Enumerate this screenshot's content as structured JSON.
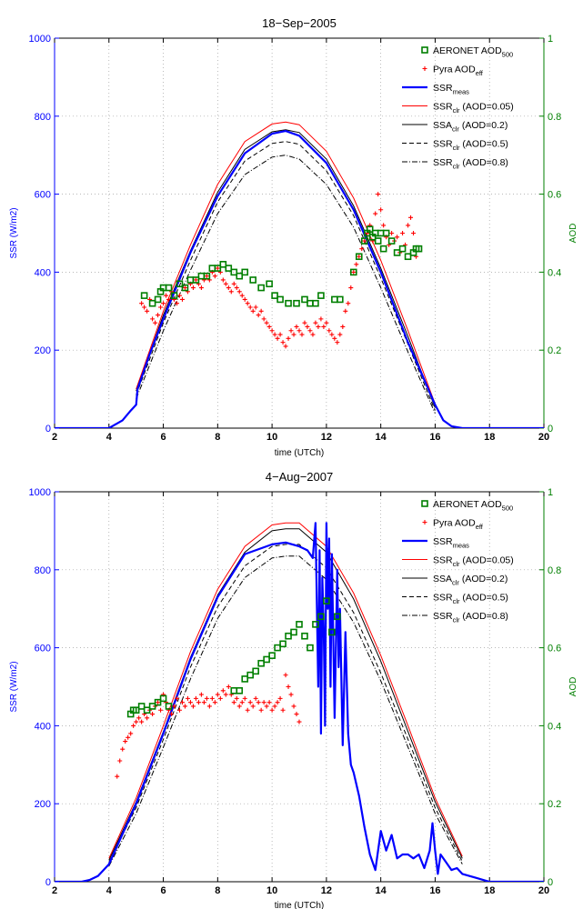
{
  "chart_data": [
    {
      "type": "line",
      "title": "18−Sep−2005",
      "xlabel": "time (UTCh)",
      "ylabel": "SSR (W/m2)",
      "y2label": "AOD",
      "xlim": [
        2,
        20
      ],
      "ylim": [
        0,
        1000
      ],
      "y2lim": [
        0,
        1
      ],
      "xticks": [
        "2",
        "4",
        "6",
        "8",
        "10",
        "12",
        "14",
        "16",
        "18",
        "20"
      ],
      "yticks": [
        "0",
        "200",
        "400",
        "600",
        "800",
        "1000"
      ],
      "y2ticks": [
        "0",
        "0.2",
        "0.4",
        "0.6",
        "0.8",
        "1"
      ],
      "grid": true,
      "legend_position": "top-right",
      "legend": [
        {
          "key": "aeronet",
          "label": "AERONET AOD",
          "sub": "500"
        },
        {
          "key": "pyra",
          "label": "Pyra AOD",
          "sub": "eff"
        },
        {
          "key": "meas",
          "label": "SSR",
          "sub": "meas"
        },
        {
          "key": "c005",
          "label": "SSR",
          "sub": "clr",
          "suffix": " (AOD=0.05)"
        },
        {
          "key": "c02",
          "label": "SSA",
          "sub": "clr",
          "suffix": " (AOD=0.2)"
        },
        {
          "key": "c05",
          "label": "SSR",
          "sub": "clr",
          "suffix": " (AOD=0.5)"
        },
        {
          "key": "c08",
          "label": "SSR",
          "sub": "clr",
          "suffix": " (AOD=0.8)"
        }
      ],
      "clear_sky": {
        "x": [
          5.0,
          6.0,
          7.0,
          8.0,
          9.0,
          10.0,
          10.5,
          11.0,
          12.0,
          13.0,
          14.0,
          15.0,
          16.0
        ],
        "c005": [
          100,
          300,
          470,
          625,
          735,
          780,
          785,
          778,
          710,
          590,
          430,
          250,
          62
        ],
        "c02": [
          95,
          290,
          455,
          605,
          715,
          760,
          765,
          758,
          690,
          570,
          410,
          235,
          52
        ],
        "c05": [
          85,
          270,
          430,
          580,
          685,
          730,
          735,
          728,
          660,
          545,
          385,
          215,
          45
        ],
        "c08": [
          75,
          250,
          405,
          550,
          650,
          695,
          700,
          690,
          625,
          515,
          360,
          195,
          38
        ]
      },
      "ssr_meas": {
        "x": [
          2.0,
          3.0,
          4.0,
          4.5,
          4.8,
          5.0,
          5.05,
          5.5,
          6.0,
          7.0,
          8.0,
          9.0,
          10.0,
          10.5,
          11.0,
          12.0,
          13.0,
          14.0,
          15.0,
          16.0,
          16.3,
          16.6,
          17.0,
          18.0,
          20.0
        ],
        "y": [
          0,
          0,
          0,
          20,
          45,
          60,
          100,
          190,
          280,
          450,
          595,
          705,
          755,
          762,
          750,
          680,
          560,
          400,
          220,
          60,
          20,
          5,
          0,
          0,
          0
        ]
      },
      "aeronet_aod": {
        "x": [
          5.3,
          5.6,
          5.8,
          5.9,
          6.0,
          6.2,
          6.4,
          6.6,
          6.8,
          7.0,
          7.2,
          7.4,
          7.6,
          7.8,
          8.0,
          8.2,
          8.4,
          8.6,
          8.8,
          9.0,
          9.3,
          9.6,
          9.9,
          10.1,
          10.3,
          10.6,
          10.9,
          11.2,
          11.4,
          11.6,
          11.8,
          12.3,
          12.5,
          13.0,
          13.2,
          13.4,
          13.5,
          13.6,
          13.7,
          13.8,
          13.9,
          14.0,
          14.1,
          14.2,
          14.4,
          14.6,
          14.8,
          15.0,
          15.2,
          15.3,
          15.4
        ],
        "y": [
          0.34,
          0.32,
          0.33,
          0.35,
          0.36,
          0.36,
          0.34,
          0.37,
          0.36,
          0.38,
          0.38,
          0.39,
          0.39,
          0.41,
          0.41,
          0.42,
          0.41,
          0.4,
          0.39,
          0.4,
          0.38,
          0.36,
          0.37,
          0.34,
          0.33,
          0.32,
          0.32,
          0.33,
          0.32,
          0.32,
          0.34,
          0.33,
          0.33,
          0.4,
          0.44,
          0.48,
          0.5,
          0.51,
          0.49,
          0.5,
          0.48,
          0.5,
          0.46,
          0.5,
          0.48,
          0.45,
          0.46,
          0.44,
          0.45,
          0.46,
          0.46
        ]
      },
      "pyra_aod": {
        "x": [
          5.2,
          5.3,
          5.4,
          5.5,
          5.6,
          5.7,
          5.8,
          5.9,
          6.0,
          6.1,
          6.2,
          6.3,
          6.4,
          6.5,
          6.6,
          6.7,
          6.8,
          6.9,
          7.0,
          7.1,
          7.2,
          7.3,
          7.4,
          7.5,
          7.6,
          7.7,
          7.8,
          7.9,
          8.0,
          8.1,
          8.2,
          8.3,
          8.4,
          8.5,
          8.6,
          8.7,
          8.8,
          8.9,
          9.0,
          9.1,
          9.2,
          9.3,
          9.4,
          9.5,
          9.6,
          9.7,
          9.8,
          9.9,
          10.0,
          10.1,
          10.2,
          10.3,
          10.4,
          10.5,
          10.6,
          10.7,
          10.8,
          10.9,
          11.0,
          11.1,
          11.2,
          11.3,
          11.4,
          11.5,
          11.6,
          11.7,
          11.8,
          11.9,
          12.0,
          12.1,
          12.2,
          12.3,
          12.4,
          12.5,
          12.6,
          12.7,
          12.8,
          12.9,
          13.0,
          13.1,
          13.2,
          13.3,
          13.4,
          13.5,
          13.6,
          13.7,
          13.8,
          13.9,
          14.0,
          14.1,
          14.2,
          14.3,
          14.4,
          14.5,
          14.6,
          14.7,
          14.8,
          14.9,
          15.0,
          15.1,
          15.2,
          15.3
        ],
        "y": [
          0.32,
          0.31,
          0.3,
          0.33,
          0.28,
          0.27,
          0.29,
          0.31,
          0.32,
          0.34,
          0.33,
          0.35,
          0.33,
          0.32,
          0.34,
          0.33,
          0.36,
          0.35,
          0.37,
          0.36,
          0.38,
          0.37,
          0.36,
          0.38,
          0.39,
          0.38,
          0.4,
          0.39,
          0.41,
          0.4,
          0.38,
          0.37,
          0.36,
          0.35,
          0.37,
          0.36,
          0.35,
          0.34,
          0.33,
          0.32,
          0.31,
          0.3,
          0.31,
          0.29,
          0.3,
          0.28,
          0.27,
          0.26,
          0.25,
          0.24,
          0.23,
          0.24,
          0.22,
          0.21,
          0.23,
          0.25,
          0.24,
          0.26,
          0.25,
          0.24,
          0.27,
          0.26,
          0.25,
          0.24,
          0.27,
          0.26,
          0.28,
          0.26,
          0.27,
          0.25,
          0.24,
          0.23,
          0.22,
          0.24,
          0.26,
          0.3,
          0.32,
          0.36,
          0.4,
          0.42,
          0.44,
          0.46,
          0.48,
          0.5,
          0.52,
          0.48,
          0.55,
          0.6,
          0.56,
          0.52,
          0.49,
          0.47,
          0.5,
          0.48,
          0.49,
          0.45,
          0.5,
          0.47,
          0.52,
          0.54,
          0.5,
          0.44
        ]
      }
    },
    {
      "type": "line",
      "title": "4−Aug−2007",
      "xlabel": "time (UTCh)",
      "ylabel": "SSR (W/m2)",
      "y2label": "AOD",
      "xlim": [
        2,
        20
      ],
      "ylim": [
        0,
        1000
      ],
      "y2lim": [
        0,
        1
      ],
      "xticks": [
        "2",
        "4",
        "6",
        "8",
        "10",
        "12",
        "14",
        "16",
        "18",
        "20"
      ],
      "yticks": [
        "0",
        "200",
        "400",
        "600",
        "800",
        "1000"
      ],
      "y2ticks": [
        "0",
        "0.2",
        "0.4",
        "0.6",
        "0.8",
        "1"
      ],
      "grid": true,
      "legend_position": "top-right",
      "legend": [
        {
          "key": "aeronet",
          "label": "AERONET AOD",
          "sub": "500"
        },
        {
          "key": "pyra",
          "label": "Pyra AOD",
          "sub": "eff"
        },
        {
          "key": "meas",
          "label": "SSR",
          "sub": "meas"
        },
        {
          "key": "c005",
          "label": "SSR",
          "sub": "clr",
          "suffix": " (AOD=0.05)"
        },
        {
          "key": "c02",
          "label": "SSA",
          "sub": "clr",
          "suffix": " (AOD=0.2)"
        },
        {
          "key": "c05",
          "label": "SSR",
          "sub": "clr",
          "suffix": " (AOD=0.5)"
        },
        {
          "key": "c08",
          "label": "SSR",
          "sub": "clr",
          "suffix": " (AOD=0.8)"
        }
      ],
      "clear_sky": {
        "x": [
          4.0,
          5.0,
          6.0,
          7.0,
          8.0,
          9.0,
          10.0,
          10.5,
          11.0,
          12.0,
          13.0,
          14.0,
          15.0,
          16.0,
          17.0
        ],
        "c005": [
          60,
          215,
          400,
          590,
          750,
          860,
          915,
          920,
          920,
          860,
          740,
          580,
          400,
          215,
          65
        ],
        "c02": [
          55,
          205,
          385,
          575,
          735,
          845,
          900,
          905,
          905,
          845,
          725,
          565,
          385,
          205,
          60
        ],
        "c05": [
          50,
          190,
          365,
          550,
          705,
          810,
          860,
          865,
          865,
          805,
          690,
          535,
          365,
          190,
          52
        ],
        "c08": [
          40,
          175,
          345,
          520,
          675,
          780,
          830,
          835,
          835,
          775,
          665,
          515,
          345,
          175,
          45
        ]
      },
      "ssr_meas": {
        "x": [
          2.0,
          3.0,
          3.3,
          3.6,
          4.0,
          5.0,
          6.0,
          7.0,
          8.0,
          9.0,
          10.0,
          10.5,
          11.0,
          11.3,
          11.5,
          11.6,
          11.7,
          11.75,
          11.8,
          11.85,
          11.9,
          11.95,
          12.0,
          12.05,
          12.1,
          12.15,
          12.2,
          12.3,
          12.4,
          12.45,
          12.5,
          12.6,
          12.7,
          12.8,
          12.9,
          13.0,
          13.2,
          13.4,
          13.6,
          13.8,
          14.0,
          14.2,
          14.4,
          14.6,
          14.8,
          15.0,
          15.2,
          15.4,
          15.6,
          15.8,
          15.9,
          16.0,
          16.1,
          16.2,
          16.4,
          16.6,
          16.8,
          17.0,
          17.5,
          18.0,
          19.0,
          20.0
        ],
        "y": [
          0,
          0,
          5,
          15,
          45,
          200,
          380,
          570,
          730,
          840,
          865,
          870,
          860,
          850,
          830,
          920,
          500,
          850,
          380,
          780,
          650,
          400,
          920,
          700,
          880,
          500,
          840,
          420,
          800,
          550,
          700,
          350,
          640,
          380,
          300,
          280,
          220,
          140,
          70,
          30,
          130,
          80,
          120,
          60,
          70,
          70,
          60,
          70,
          35,
          80,
          150,
          80,
          20,
          70,
          50,
          30,
          35,
          20,
          10,
          0,
          0,
          0
        ]
      },
      "aeronet_aod": {
        "x": [
          4.8,
          4.9,
          5.0,
          5.2,
          5.4,
          5.6,
          5.8,
          6.0,
          6.2,
          8.6,
          8.8,
          9.0,
          9.2,
          9.4,
          9.6,
          9.8,
          10.0,
          10.2,
          10.4,
          10.6,
          10.8,
          11.0,
          11.2,
          11.4,
          11.6,
          11.8,
          12.0,
          12.2,
          12.4
        ],
        "y": [
          0.43,
          0.44,
          0.44,
          0.45,
          0.44,
          0.45,
          0.46,
          0.47,
          0.45,
          0.49,
          0.49,
          0.52,
          0.53,
          0.54,
          0.56,
          0.57,
          0.58,
          0.6,
          0.61,
          0.63,
          0.64,
          0.66,
          0.63,
          0.6,
          0.66,
          0.68,
          0.72,
          0.64,
          0.68
        ]
      },
      "pyra_aod": {
        "x": [
          4.3,
          4.4,
          4.5,
          4.6,
          4.7,
          4.8,
          4.9,
          5.0,
          5.1,
          5.2,
          5.3,
          5.4,
          5.5,
          5.6,
          5.7,
          5.8,
          5.9,
          6.0,
          6.1,
          6.2,
          6.3,
          6.4,
          6.5,
          6.6,
          6.7,
          6.8,
          6.9,
          7.0,
          7.1,
          7.2,
          7.3,
          7.4,
          7.5,
          7.6,
          7.7,
          7.8,
          7.9,
          8.0,
          8.1,
          8.2,
          8.3,
          8.4,
          8.5,
          8.6,
          8.7,
          8.8,
          8.9,
          9.0,
          9.1,
          9.2,
          9.3,
          9.4,
          9.5,
          9.6,
          9.7,
          9.8,
          9.9,
          10.0,
          10.1,
          10.2,
          10.3,
          10.4,
          10.5,
          10.6,
          10.7,
          10.8,
          10.9,
          11.0
        ],
        "y": [
          0.27,
          0.31,
          0.34,
          0.36,
          0.37,
          0.38,
          0.4,
          0.41,
          0.42,
          0.41,
          0.43,
          0.42,
          0.44,
          0.43,
          0.45,
          0.46,
          0.44,
          0.48,
          0.46,
          0.44,
          0.43,
          0.45,
          0.47,
          0.44,
          0.46,
          0.45,
          0.47,
          0.46,
          0.45,
          0.47,
          0.46,
          0.48,
          0.46,
          0.47,
          0.45,
          0.47,
          0.46,
          0.48,
          0.47,
          0.49,
          0.48,
          0.5,
          0.48,
          0.46,
          0.47,
          0.45,
          0.46,
          0.47,
          0.44,
          0.46,
          0.45,
          0.47,
          0.46,
          0.44,
          0.46,
          0.45,
          0.46,
          0.44,
          0.45,
          0.46,
          0.47,
          0.44,
          0.53,
          0.5,
          0.48,
          0.45,
          0.43,
          0.41
        ]
      }
    }
  ]
}
